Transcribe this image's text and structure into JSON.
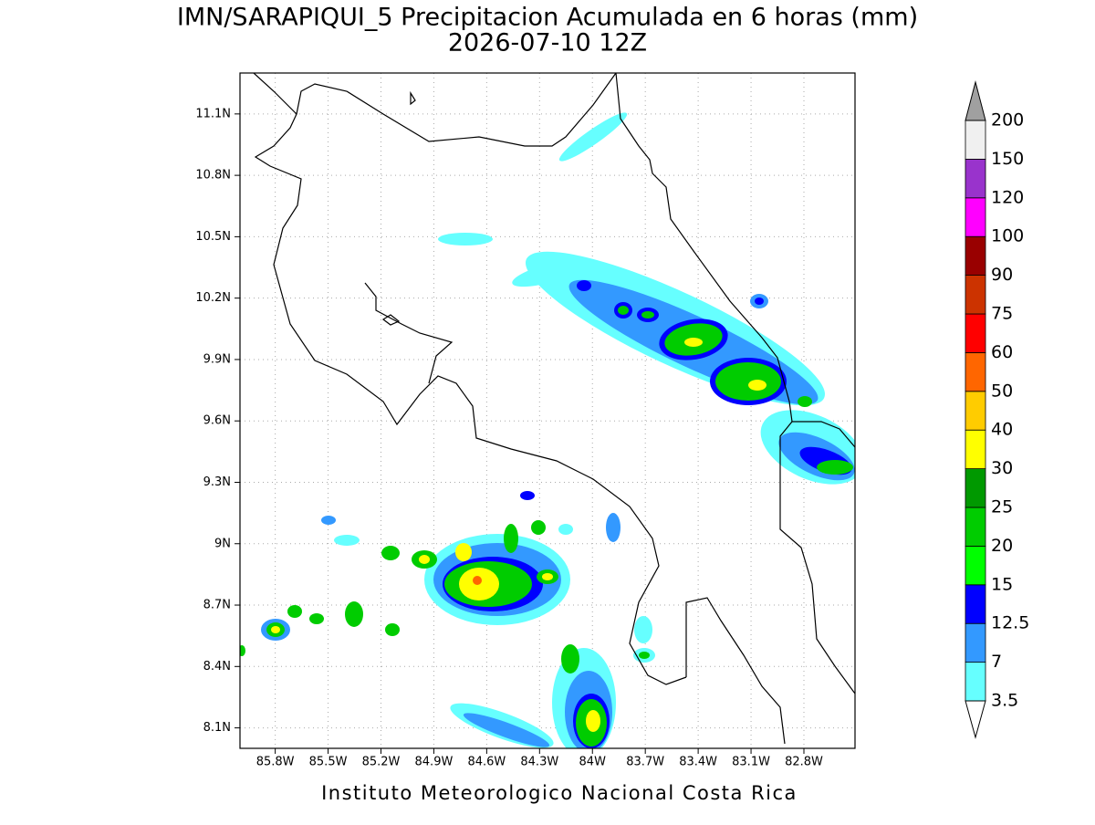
{
  "map": {
    "title": "IMN/SARAPIQUI_5 Precipitacion Acumulada en 6 horas (mm)",
    "subtitle": "2026-07-10 12Z",
    "footer": "Instituto Meteorologico Nacional Costa Rica",
    "xlim": [
      -86.0,
      -82.51
    ],
    "ylim": [
      8.0,
      11.3
    ],
    "xticks": [
      {
        "value": -85.8,
        "label": "85.8W"
      },
      {
        "value": -85.5,
        "label": "85.5W"
      },
      {
        "value": -85.2,
        "label": "85.2W"
      },
      {
        "value": -84.9,
        "label": "84.9W"
      },
      {
        "value": -84.6,
        "label": "84.6W"
      },
      {
        "value": -84.3,
        "label": "84.3W"
      },
      {
        "value": -84.0,
        "label": "84W"
      },
      {
        "value": -83.7,
        "label": "83.7W"
      },
      {
        "value": -83.4,
        "label": "83.4W"
      },
      {
        "value": -83.1,
        "label": "83.1W"
      },
      {
        "value": -82.8,
        "label": "82.8W"
      }
    ],
    "yticks": [
      {
        "value": 8.1,
        "label": "8.1N"
      },
      {
        "value": 8.4,
        "label": "8.4N"
      },
      {
        "value": 8.7,
        "label": "8.7N"
      },
      {
        "value": 9.0,
        "label": "9N"
      },
      {
        "value": 9.3,
        "label": "9.3N"
      },
      {
        "value": 9.6,
        "label": "9.6N"
      },
      {
        "value": 9.9,
        "label": "9.9N"
      },
      {
        "value": 10.2,
        "label": "10.2N"
      },
      {
        "value": 10.5,
        "label": "10.5N"
      },
      {
        "value": 10.8,
        "label": "10.8N"
      },
      {
        "value": 11.1,
        "label": "11.1N"
      }
    ],
    "colorbar": {
      "levels": [
        3.5,
        7,
        12.5,
        15,
        20,
        25,
        30,
        40,
        50,
        60,
        75,
        90,
        100,
        120,
        150,
        200
      ],
      "colors": [
        "#66ffff",
        "#3399ff",
        "#0000ff",
        "#00ff00",
        "#00cc00",
        "#009900",
        "#ffff00",
        "#ffcc00",
        "#ff6600",
        "#ff0000",
        "#cc3300",
        "#990000",
        "#ff00ff",
        "#9933cc",
        "#f0f0f0"
      ],
      "under_color": "#ffffff",
      "over_color": "#a0a0a0"
    }
  }
}
